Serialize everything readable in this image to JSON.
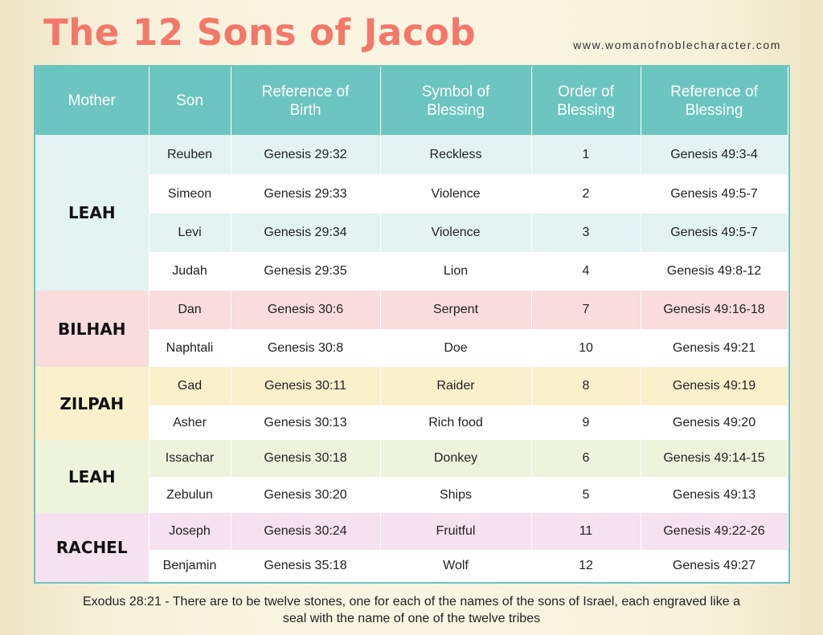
{
  "header": {
    "title": "The 12 Sons of Jacob",
    "website": "www.womanofnoblecharacter.com"
  },
  "table": {
    "columns": [
      "Mother",
      "Son",
      "Reference of Birth",
      "Symbol of Blessing",
      "Order of Blessing",
      "Reference of Blessing"
    ],
    "groups": [
      {
        "mother": "LEAH",
        "rows": [
          [
            "Reuben",
            "Genesis 29:32",
            "Reckless",
            "1",
            "Genesis 49:3-4"
          ],
          [
            "Simeon",
            "Genesis 29:33",
            "Violence",
            "2",
            "Genesis 49:5-7"
          ],
          [
            "Levi",
            "Genesis 29:34",
            "Violence",
            "3",
            "Genesis 49:5-7"
          ],
          [
            "Judah",
            "Genesis 29:35",
            "Lion",
            "4",
            "Genesis 49:8-12"
          ]
        ]
      },
      {
        "mother": "BILHAH",
        "rows": [
          [
            "Dan",
            "Genesis 30:6",
            "Serpent",
            "7",
            "Genesis 49:16-18"
          ],
          [
            "Naphtali",
            "Genesis 30:8",
            "Doe",
            "10",
            "Genesis 49:21"
          ]
        ]
      },
      {
        "mother": "ZILPAH",
        "rows": [
          [
            "Gad",
            "Genesis 30:11",
            "Raider",
            "8",
            "Genesis 49:19"
          ],
          [
            "Asher",
            "Genesis 30:13",
            "Rich food",
            "9",
            "Genesis 49:20"
          ]
        ]
      },
      {
        "mother": "LEAH",
        "rows": [
          [
            "Issachar",
            "Genesis 30:18",
            "Donkey",
            "6",
            "Genesis 49:14-15"
          ],
          [
            "Zebulun",
            "Genesis 30:20",
            "Ships",
            "5",
            "Genesis 49:13"
          ]
        ]
      },
      {
        "mother": "RACHEL",
        "rows": [
          [
            "Joseph",
            "Genesis 30:24",
            "Fruitful",
            "11",
            "Genesis 49:22-26"
          ],
          [
            "Benjamin",
            "Genesis 35:18",
            "Wolf",
            "12",
            "Genesis 49:27"
          ]
        ]
      }
    ]
  },
  "footer": "Exodus 28:21 - There are to be twelve stones, one for each of the names of the sons of Israel, each engraved like a seal with the name of one of the twelve tribes"
}
